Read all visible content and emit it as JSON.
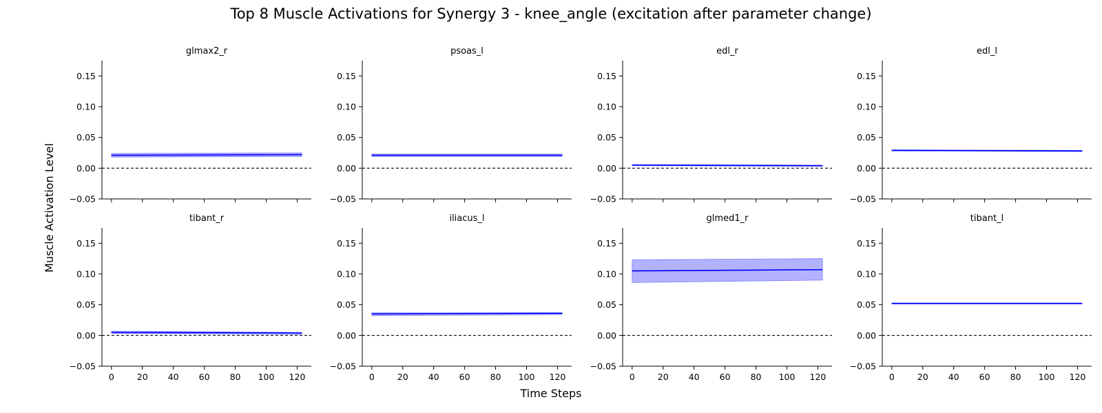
{
  "chart_data": {
    "type": "line",
    "title": "Top 8 Muscle Activations for Synergy 3 - knee_angle (excitation after parameter change)",
    "xlabel": "Time Steps",
    "ylabel": "Muscle Activation Level",
    "xlim": [
      -6.15,
      129.15
    ],
    "ylim": [
      -0.05,
      0.175
    ],
    "xticks": [
      0,
      20,
      40,
      60,
      80,
      100,
      120
    ],
    "xtick_labels": [
      "0",
      "20",
      "40",
      "60",
      "80",
      "100",
      "120"
    ],
    "yticks": [
      -0.05,
      0.0,
      0.05,
      0.1,
      0.15
    ],
    "ytick_labels": [
      "−0.05",
      "0.00",
      "0.05",
      "0.10",
      "0.15"
    ],
    "reference_line": {
      "y": 0.0,
      "style": "dashed",
      "color": "#000000"
    },
    "line_color": "#0000ff",
    "band_color": "#0000ff",
    "band_opacity": 0.3,
    "grid": false,
    "layout": {
      "rows": 2,
      "cols": 4,
      "sharex": true
    },
    "subplots": [
      {
        "title": "glmax2_r",
        "x": [
          0,
          123
        ],
        "mean": [
          0.021,
          0.022
        ],
        "lower": [
          0.018,
          0.019
        ],
        "upper": [
          0.024,
          0.025
        ]
      },
      {
        "title": "psoas_l",
        "x": [
          0,
          123
        ],
        "mean": [
          0.021,
          0.021
        ],
        "lower": [
          0.019,
          0.019
        ],
        "upper": [
          0.023,
          0.023
        ]
      },
      {
        "title": "edl_r",
        "x": [
          0,
          123
        ],
        "mean": [
          0.005,
          0.004
        ],
        "lower": [
          0.004,
          0.003
        ],
        "upper": [
          0.006,
          0.005
        ]
      },
      {
        "title": "edl_l",
        "x": [
          0,
          123
        ],
        "mean": [
          0.029,
          0.028
        ],
        "lower": [
          0.028,
          0.027
        ],
        "upper": [
          0.03,
          0.029
        ]
      },
      {
        "title": "tibant_r",
        "x": [
          0,
          123
        ],
        "mean": [
          0.005,
          0.004
        ],
        "lower": [
          0.003,
          0.002
        ],
        "upper": [
          0.007,
          0.005
        ]
      },
      {
        "title": "iliacus_l",
        "x": [
          0,
          123
        ],
        "mean": [
          0.035,
          0.036
        ],
        "lower": [
          0.032,
          0.034
        ],
        "upper": [
          0.037,
          0.037
        ]
      },
      {
        "title": "glmed1_r",
        "x": [
          0,
          123
        ],
        "mean": [
          0.105,
          0.107
        ],
        "lower": [
          0.086,
          0.09
        ],
        "upper": [
          0.123,
          0.125
        ]
      },
      {
        "title": "tibant_l",
        "x": [
          0,
          123
        ],
        "mean": [
          0.052,
          0.052
        ],
        "lower": [
          0.051,
          0.051
        ],
        "upper": [
          0.053,
          0.053
        ]
      }
    ]
  }
}
